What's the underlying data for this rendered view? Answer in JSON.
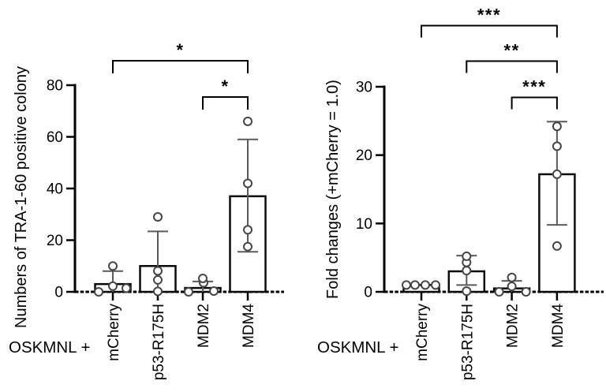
{
  "figure": {
    "background": "#ffffff",
    "ink": "#000000",
    "bar_fill": "#ffffff",
    "bar_stroke": "#0a0a0a",
    "error_color": "#5a5a5a",
    "point_stroke": "#454545",
    "point_fill": "#ffffff"
  },
  "chart_data": [
    {
      "id": "colony-counts",
      "type": "bar",
      "title": "",
      "ylabel": "Numbers of TRA-1-60 positive colony",
      "xlabel": "",
      "x_prefix": "OSKMNL +",
      "categories": [
        "mCherry",
        "p53-R175H",
        "MDM2",
        "MDM4"
      ],
      "values": [
        3,
        10,
        1.5,
        37
      ],
      "error_high": [
        8,
        23.4,
        4,
        59
      ],
      "error_low": [
        null,
        null,
        null,
        15.5
      ],
      "points": [
        [
          {
            "v": 0,
            "dx": -18
          },
          {
            "v": 2.2,
            "dx": 0
          },
          {
            "v": 1.4,
            "dx": 17
          },
          {
            "v": 10,
            "dx": 0
          }
        ],
        [
          {
            "v": 0.2,
            "dx": 0
          },
          {
            "v": 4.6,
            "dx": 0
          },
          {
            "v": 8.1,
            "dx": 0
          },
          {
            "v": 29,
            "dx": 0
          }
        ],
        [
          {
            "v": 0,
            "dx": -18
          },
          {
            "v": 0.3,
            "dx": 14
          },
          {
            "v": 3.5,
            "dx": 1
          },
          {
            "v": 5.2,
            "dx": 0
          }
        ],
        [
          {
            "v": 17.5,
            "dx": 0
          },
          {
            "v": 24,
            "dx": 0
          },
          {
            "v": 42,
            "dx": 0
          },
          {
            "v": 66,
            "dx": 0
          }
        ]
      ],
      "ylim": [
        0,
        80
      ],
      "yticks": [
        0,
        20,
        40,
        60,
        80
      ],
      "grid": false,
      "zero_baseline_style": "dashed",
      "significance": [
        {
          "from": "mCherry",
          "to": "MDM4",
          "label": "*"
        },
        {
          "from": "MDM2",
          "to": "MDM4",
          "label": "*"
        }
      ]
    },
    {
      "id": "fold-changes",
      "type": "bar",
      "title": "",
      "ylabel": "Fold changes (+mCherry = 1.0)",
      "xlabel": "",
      "x_prefix": "OSKMNL +",
      "categories": [
        "mCherry",
        "p53-R175H",
        "MDM2",
        "MDM4"
      ],
      "values": [
        1,
        3,
        0.5,
        17.2
      ],
      "error_high": [
        null,
        5.3,
        1.6,
        24.9
      ],
      "error_low": [
        null,
        1.0,
        null,
        9.8
      ],
      "points": [
        [
          {
            "v": 1,
            "dx": -19
          },
          {
            "v": 1,
            "dx": -8
          },
          {
            "v": 1,
            "dx": 5
          },
          {
            "v": 1,
            "dx": 18
          }
        ],
        [
          {
            "v": 0.1,
            "dx": 0
          },
          {
            "v": 3.1,
            "dx": 0
          },
          {
            "v": 4.3,
            "dx": 0
          },
          {
            "v": 5.2,
            "dx": 0
          }
        ],
        [
          {
            "v": 0,
            "dx": -16
          },
          {
            "v": 0,
            "dx": 18
          },
          {
            "v": 0.8,
            "dx": 0
          },
          {
            "v": 2.1,
            "dx": 0
          }
        ],
        [
          {
            "v": 6.7,
            "dx": 0
          },
          {
            "v": 17.2,
            "dx": 0
          },
          {
            "v": 21.3,
            "dx": 0
          },
          {
            "v": 24.2,
            "dx": 0
          }
        ]
      ],
      "ylim": [
        0,
        30
      ],
      "yticks": [
        0,
        10,
        20,
        30
      ],
      "grid": false,
      "zero_baseline_style": "dashed",
      "significance": [
        {
          "from": "mCherry",
          "to": "MDM4",
          "label": "***"
        },
        {
          "from": "p53-R175H",
          "to": "MDM4",
          "label": "**"
        },
        {
          "from": "MDM2",
          "to": "MDM4",
          "label": "***"
        }
      ]
    }
  ]
}
